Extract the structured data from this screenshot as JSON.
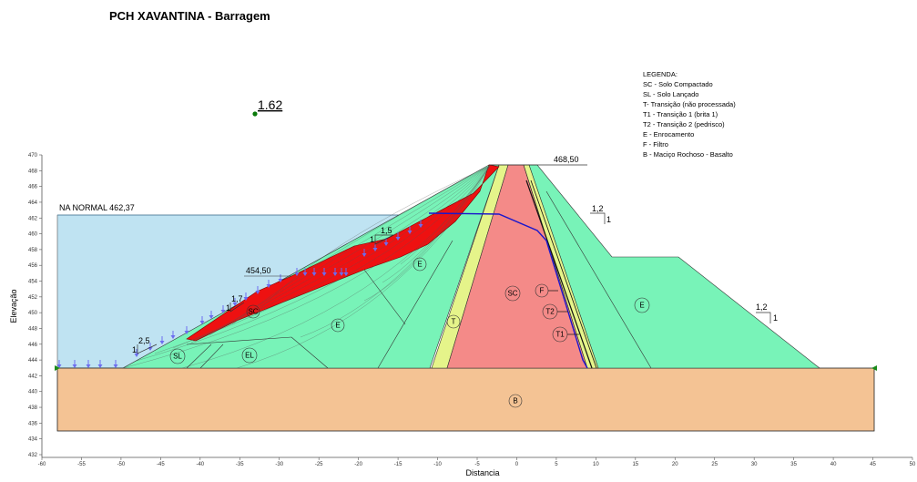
{
  "title": "PCH XAVANTINA - Barragem",
  "factor_of_safety": "1.62",
  "axes": {
    "xlabel": "Distancia",
    "ylabel": "Elevação",
    "x_ticks": [
      "-60",
      "-55",
      "-50",
      "-45",
      "-40",
      "-35",
      "-30",
      "-25",
      "-20",
      "-15",
      "-10",
      "-5",
      "0",
      "5",
      "10",
      "15",
      "20",
      "25",
      "30",
      "35",
      "40",
      "45",
      "50"
    ],
    "y_ticks": [
      "432",
      "434",
      "436",
      "438",
      "440",
      "442",
      "444",
      "446",
      "448",
      "450",
      "452",
      "454",
      "456",
      "458",
      "460",
      "462",
      "464",
      "466",
      "468",
      "470"
    ]
  },
  "annotations": {
    "water_level": "NA NORMAL 462,37",
    "berm_elevation": "454,50",
    "crest_elevation": "468,50"
  },
  "slope_labels": {
    "upstream_1_5": "1,5",
    "upstream_1_7": "1,7",
    "upstream_2_5": "2,5",
    "downstream_upper": "1,2",
    "downstream_lower": "1,2",
    "unit": "1"
  },
  "legend": {
    "title": "LEGENDA:",
    "items": [
      "SC - Solo Compactado",
      "SL - Solo Lançado",
      "T- Transição (não processada)",
      "T1 - Transição 1 (brita 1)",
      "T2 - Transição 2 (pedrisco)",
      "E - Enrocamento",
      "F - Filtro",
      "B - Maciço Rochoso - Basalto"
    ]
  },
  "zones": {
    "sc_upstream": "SC",
    "sc_core": "SC",
    "sl": "SL",
    "el": "EL",
    "e_upper": "E",
    "e_middle": "E",
    "e_downstream": "E",
    "t": "T",
    "f": "F",
    "t2": "T2",
    "t1": "T1",
    "b": "B"
  },
  "colors": {
    "water": "#bfe3f2",
    "rockfill": "#78f3b8",
    "core": "#f48a88",
    "transition": "#e5f48a",
    "foundation": "#f4c394",
    "slip_mass": "#ee1111",
    "water_line": "#1b17cc",
    "load_arrow": "#6c6cf0"
  }
}
